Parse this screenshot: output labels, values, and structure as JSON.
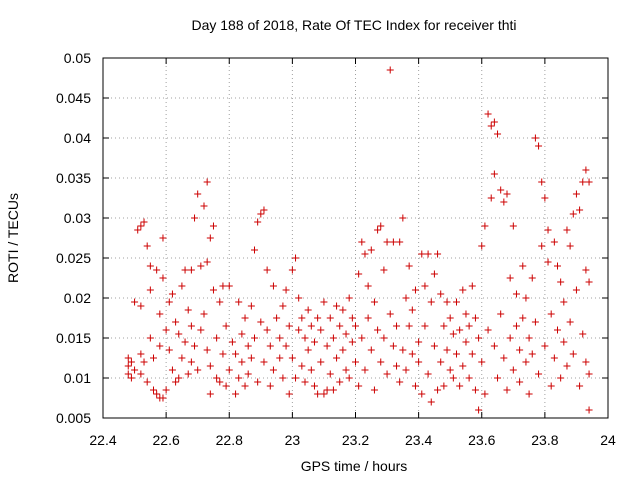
{
  "chart_data": {
    "type": "scatter",
    "title": "Day 188 of 2018, Rate Of TEC Index for receiver thti",
    "xlabel": "GPS time / hours",
    "ylabel": "ROTI / TECUs",
    "xlim": [
      22.4,
      24.0
    ],
    "ylim": [
      0.005,
      0.05
    ],
    "grid": true,
    "marker": "+",
    "marker_color": "#cc0000",
    "xticks": [
      "22.4",
      "22.6",
      "22.8",
      "23",
      "23.2",
      "23.4",
      "23.6",
      "23.8",
      "24"
    ],
    "yticks": [
      "0.005",
      "0.01",
      "0.015",
      "0.02",
      "0.025",
      "0.03",
      "0.035",
      "0.04",
      "0.045",
      "0.05"
    ],
    "series": [
      {
        "name": "ROTI",
        "points": [
          [
            22.48,
            0.0115
          ],
          [
            22.48,
            0.0125
          ],
          [
            22.48,
            0.0105
          ],
          [
            22.49,
            0.01
          ],
          [
            22.49,
            0.012
          ],
          [
            22.5,
            0.0195
          ],
          [
            22.5,
            0.011
          ],
          [
            22.51,
            0.0285
          ],
          [
            22.52,
            0.029
          ],
          [
            22.52,
            0.019
          ],
          [
            22.52,
            0.013
          ],
          [
            22.52,
            0.0105
          ],
          [
            22.53,
            0.0295
          ],
          [
            22.53,
            0.012
          ],
          [
            22.54,
            0.0265
          ],
          [
            22.54,
            0.0095
          ],
          [
            22.55,
            0.024
          ],
          [
            22.55,
            0.021
          ],
          [
            22.55,
            0.015
          ],
          [
            22.56,
            0.0085
          ],
          [
            22.56,
            0.0125
          ],
          [
            22.57,
            0.0235
          ],
          [
            22.57,
            0.008
          ],
          [
            22.58,
            0.0075
          ],
          [
            22.58,
            0.014
          ],
          [
            22.58,
            0.018
          ],
          [
            22.59,
            0.0275
          ],
          [
            22.59,
            0.0225
          ],
          [
            22.59,
            0.0075
          ],
          [
            22.6,
            0.016
          ],
          [
            22.6,
            0.0085
          ],
          [
            22.61,
            0.0195
          ],
          [
            22.61,
            0.0135
          ],
          [
            22.62,
            0.011
          ],
          [
            22.62,
            0.0205
          ],
          [
            22.63,
            0.0095
          ],
          [
            22.63,
            0.017
          ],
          [
            22.64,
            0.01
          ],
          [
            22.64,
            0.0155
          ],
          [
            22.65,
            0.0215
          ],
          [
            22.65,
            0.0125
          ],
          [
            22.66,
            0.0235
          ],
          [
            22.66,
            0.0145
          ],
          [
            22.67,
            0.0105
          ],
          [
            22.67,
            0.0185
          ],
          [
            22.68,
            0.0165
          ],
          [
            22.68,
            0.0235
          ],
          [
            22.68,
            0.012
          ],
          [
            22.69,
            0.03
          ],
          [
            22.69,
            0.014
          ],
          [
            22.7,
            0.033
          ],
          [
            22.7,
            0.011
          ],
          [
            22.71,
            0.024
          ],
          [
            22.71,
            0.016
          ],
          [
            22.72,
            0.0315
          ],
          [
            22.72,
            0.018
          ],
          [
            22.73,
            0.0345
          ],
          [
            22.73,
            0.0245
          ],
          [
            22.73,
            0.0135
          ],
          [
            22.74,
            0.008
          ],
          [
            22.74,
            0.0275
          ],
          [
            22.74,
            0.0115
          ],
          [
            22.75,
            0.029
          ],
          [
            22.75,
            0.021
          ],
          [
            22.76,
            0.01
          ],
          [
            22.76,
            0.015
          ],
          [
            22.77,
            0.0095
          ],
          [
            22.77,
            0.0195
          ],
          [
            22.78,
            0.013
          ],
          [
            22.78,
            0.0215
          ],
          [
            22.79,
            0.009
          ],
          [
            22.79,
            0.0165
          ],
          [
            22.8,
            0.011
          ],
          [
            22.8,
            0.0215
          ],
          [
            22.81,
            0.0145
          ],
          [
            22.82,
            0.008
          ],
          [
            22.82,
            0.013
          ],
          [
            22.83,
            0.0195
          ],
          [
            22.83,
            0.01
          ],
          [
            22.84,
            0.0155
          ],
          [
            22.84,
            0.012
          ],
          [
            22.85,
            0.0175
          ],
          [
            22.85,
            0.009
          ],
          [
            22.86,
            0.014
          ],
          [
            22.86,
            0.0105
          ],
          [
            22.87,
            0.019
          ],
          [
            22.87,
            0.0125
          ],
          [
            22.88,
            0.026
          ],
          [
            22.88,
            0.015
          ],
          [
            22.89,
            0.0095
          ],
          [
            22.89,
            0.0295
          ],
          [
            22.9,
            0.0305
          ],
          [
            22.9,
            0.017
          ],
          [
            22.91,
            0.031
          ],
          [
            22.91,
            0.012
          ],
          [
            22.92,
            0.0235
          ],
          [
            22.92,
            0.016
          ],
          [
            22.93,
            0.009
          ],
          [
            22.93,
            0.014
          ],
          [
            22.94,
            0.0215
          ],
          [
            22.94,
            0.011
          ],
          [
            22.95,
            0.0175
          ],
          [
            22.96,
            0.015
          ],
          [
            22.96,
            0.0125
          ],
          [
            22.97,
            0.019
          ],
          [
            22.97,
            0.01
          ],
          [
            22.98,
            0.021
          ],
          [
            22.98,
            0.014
          ],
          [
            22.99,
            0.0165
          ],
          [
            22.99,
            0.008
          ],
          [
            23.0,
            0.0235
          ],
          [
            23.0,
            0.0125
          ],
          [
            23.01,
            0.025
          ],
          [
            23.01,
            0.01
          ],
          [
            23.02,
            0.02
          ],
          [
            23.02,
            0.016
          ],
          [
            23.03,
            0.0175
          ],
          [
            23.03,
            0.0115
          ],
          [
            23.04,
            0.015
          ],
          [
            23.04,
            0.0095
          ],
          [
            23.05,
            0.0185
          ],
          [
            23.05,
            0.0135
          ],
          [
            23.06,
            0.011
          ],
          [
            23.06,
            0.0165
          ],
          [
            23.07,
            0.009
          ],
          [
            23.07,
            0.0145
          ],
          [
            23.08,
            0.0175
          ],
          [
            23.08,
            0.008
          ],
          [
            23.09,
            0.012
          ],
          [
            23.09,
            0.016
          ],
          [
            23.1,
            0.008
          ],
          [
            23.1,
            0.0195
          ],
          [
            23.11,
            0.014
          ],
          [
            23.11,
            0.0085
          ],
          [
            23.12,
            0.0175
          ],
          [
            23.12,
            0.0105
          ],
          [
            23.13,
            0.015
          ],
          [
            23.13,
            0.0085
          ],
          [
            23.14,
            0.019
          ],
          [
            23.14,
            0.0125
          ],
          [
            23.15,
            0.0165
          ],
          [
            23.15,
            0.0095
          ],
          [
            23.16,
            0.0185
          ],
          [
            23.16,
            0.0135
          ],
          [
            23.17,
            0.011
          ],
          [
            23.17,
            0.0155
          ],
          [
            23.18,
            0.02
          ],
          [
            23.18,
            0.01
          ],
          [
            23.19,
            0.0145
          ],
          [
            23.19,
            0.0175
          ],
          [
            23.2,
            0.012
          ],
          [
            23.2,
            0.0165
          ],
          [
            23.21,
            0.023
          ],
          [
            23.21,
            0.009
          ],
          [
            23.22,
            0.027
          ],
          [
            23.22,
            0.015
          ],
          [
            23.23,
            0.0255
          ],
          [
            23.23,
            0.011
          ],
          [
            23.24,
            0.0215
          ],
          [
            23.24,
            0.0175
          ],
          [
            23.25,
            0.026
          ],
          [
            23.25,
            0.0135
          ],
          [
            23.26,
            0.0195
          ],
          [
            23.26,
            0.0085
          ],
          [
            23.27,
            0.0285
          ],
          [
            23.27,
            0.016
          ],
          [
            23.28,
            0.029
          ],
          [
            23.28,
            0.012
          ],
          [
            23.29,
            0.0235
          ],
          [
            23.29,
            0.015
          ],
          [
            23.3,
            0.027
          ],
          [
            23.3,
            0.0105
          ],
          [
            23.31,
            0.0485
          ],
          [
            23.31,
            0.018
          ],
          [
            23.32,
            0.027
          ],
          [
            23.32,
            0.014
          ],
          [
            23.33,
            0.0115
          ],
          [
            23.33,
            0.0165
          ],
          [
            23.34,
            0.027
          ],
          [
            23.34,
            0.0095
          ],
          [
            23.35,
            0.03
          ],
          [
            23.35,
            0.0135
          ],
          [
            23.36,
            0.02
          ],
          [
            23.36,
            0.011
          ],
          [
            23.37,
            0.024
          ],
          [
            23.37,
            0.0165
          ],
          [
            23.38,
            0.013
          ],
          [
            23.38,
            0.0185
          ],
          [
            23.39,
            0.009
          ],
          [
            23.39,
            0.021
          ],
          [
            23.4,
            0.0145
          ],
          [
            23.4,
            0.012
          ],
          [
            23.41,
            0.0255
          ],
          [
            23.41,
            0.008
          ],
          [
            23.42,
            0.0215
          ],
          [
            23.42,
            0.0165
          ],
          [
            23.43,
            0.0255
          ],
          [
            23.43,
            0.0105
          ],
          [
            23.44,
            0.0195
          ],
          [
            23.44,
            0.007
          ],
          [
            23.45,
            0.023
          ],
          [
            23.45,
            0.014
          ],
          [
            23.46,
            0.0255
          ],
          [
            23.46,
            0.0085
          ],
          [
            23.47,
            0.0205
          ],
          [
            23.47,
            0.012
          ],
          [
            23.48,
            0.0165
          ],
          [
            23.48,
            0.009
          ],
          [
            23.49,
            0.0195
          ],
          [
            23.49,
            0.0135
          ],
          [
            23.5,
            0.011
          ],
          [
            23.5,
            0.0175
          ],
          [
            23.51,
            0.0155
          ],
          [
            23.51,
            0.01
          ],
          [
            23.52,
            0.0195
          ],
          [
            23.52,
            0.013
          ],
          [
            23.53,
            0.016
          ],
          [
            23.53,
            0.009
          ],
          [
            23.54,
            0.021
          ],
          [
            23.54,
            0.0115
          ],
          [
            23.55,
            0.018
          ],
          [
            23.55,
            0.0145
          ],
          [
            23.56,
            0.01
          ],
          [
            23.56,
            0.0165
          ],
          [
            23.57,
            0.0215
          ],
          [
            23.57,
            0.013
          ],
          [
            23.58,
            0.0085
          ],
          [
            23.58,
            0.0175
          ],
          [
            23.59,
            0.015
          ],
          [
            23.59,
            0.006
          ],
          [
            23.6,
            0.0265
          ],
          [
            23.6,
            0.012
          ],
          [
            23.61,
            0.029
          ],
          [
            23.61,
            0.008
          ],
          [
            23.62,
            0.043
          ],
          [
            23.62,
            0.016
          ],
          [
            23.63,
            0.0415
          ],
          [
            23.63,
            0.0325
          ],
          [
            23.64,
            0.042
          ],
          [
            23.64,
            0.0355
          ],
          [
            23.64,
            0.014
          ],
          [
            23.65,
            0.0405
          ],
          [
            23.65,
            0.01
          ],
          [
            23.66,
            0.0335
          ],
          [
            23.66,
            0.018
          ],
          [
            23.67,
            0.032
          ],
          [
            23.67,
            0.0125
          ],
          [
            23.68,
            0.033
          ],
          [
            23.68,
            0.0085
          ],
          [
            23.69,
            0.0225
          ],
          [
            23.69,
            0.015
          ],
          [
            23.7,
            0.029
          ],
          [
            23.7,
            0.011
          ],
          [
            23.71,
            0.0205
          ],
          [
            23.71,
            0.0165
          ],
          [
            23.72,
            0.0135
          ],
          [
            23.72,
            0.0095
          ],
          [
            23.73,
            0.0175
          ],
          [
            23.73,
            0.024
          ],
          [
            23.74,
            0.012
          ],
          [
            23.74,
            0.02
          ],
          [
            23.75,
            0.015
          ],
          [
            23.75,
            0.008
          ],
          [
            23.76,
            0.0225
          ],
          [
            23.76,
            0.013
          ],
          [
            23.77,
            0.04
          ],
          [
            23.77,
            0.017
          ],
          [
            23.78,
            0.039
          ],
          [
            23.78,
            0.0105
          ],
          [
            23.79,
            0.0345
          ],
          [
            23.79,
            0.0265
          ],
          [
            23.8,
            0.0325
          ],
          [
            23.8,
            0.014
          ],
          [
            23.81,
            0.0285
          ],
          [
            23.81,
            0.0245
          ],
          [
            23.82,
            0.009
          ],
          [
            23.82,
            0.018
          ],
          [
            23.83,
            0.027
          ],
          [
            23.83,
            0.0125
          ],
          [
            23.84,
            0.024
          ],
          [
            23.84,
            0.016
          ],
          [
            23.85,
            0.022
          ],
          [
            23.85,
            0.01
          ],
          [
            23.86,
            0.0195
          ],
          [
            23.86,
            0.0145
          ],
          [
            23.87,
            0.0285
          ],
          [
            23.87,
            0.0115
          ],
          [
            23.88,
            0.0265
          ],
          [
            23.88,
            0.017
          ],
          [
            23.89,
            0.0305
          ],
          [
            23.89,
            0.013
          ],
          [
            23.9,
            0.033
          ],
          [
            23.9,
            0.021
          ],
          [
            23.91,
            0.031
          ],
          [
            23.91,
            0.009
          ],
          [
            23.92,
            0.0345
          ],
          [
            23.92,
            0.0155
          ],
          [
            23.93,
            0.036
          ],
          [
            23.93,
            0.012
          ],
          [
            23.93,
            0.0235
          ],
          [
            23.94,
            0.0345
          ],
          [
            23.94,
            0.006
          ],
          [
            23.94,
            0.022
          ],
          [
            23.94,
            0.0105
          ]
        ]
      }
    ]
  }
}
